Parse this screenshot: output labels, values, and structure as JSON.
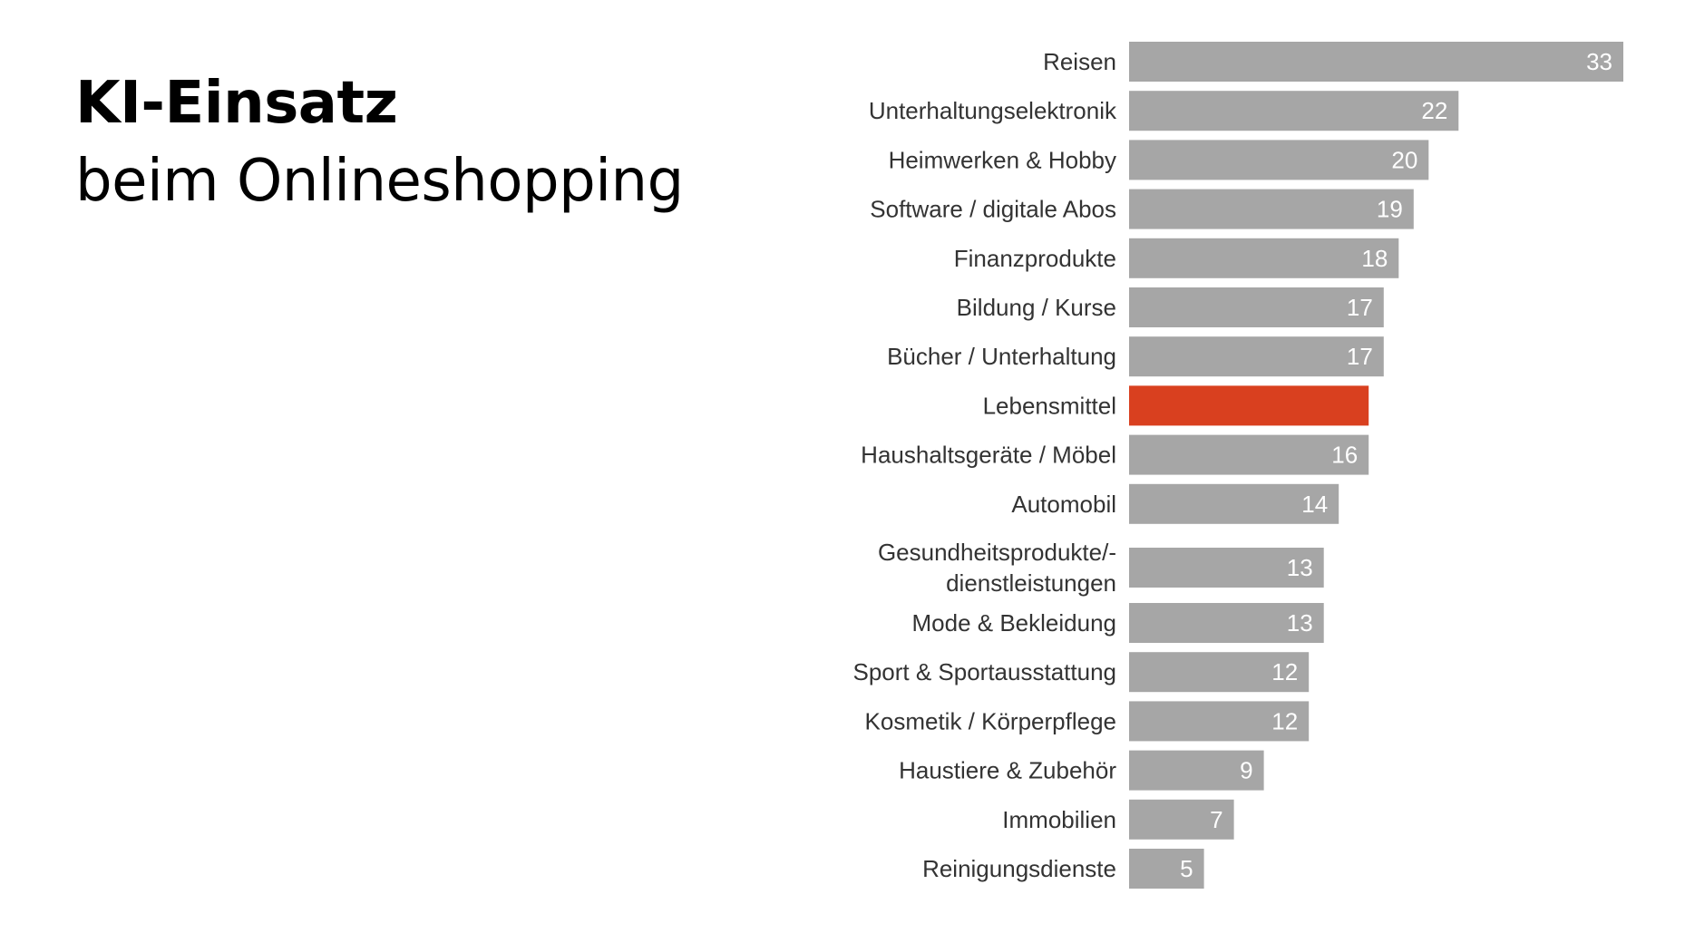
{
  "title": "KI-Einsatz",
  "subtitle": "beim Onlineshopping",
  "colors": {
    "bar": "#a6a6a6",
    "highlight": "#d9401f",
    "label": "#333333",
    "value": "#ffffff"
  },
  "chart_data": {
    "type": "bar",
    "orientation": "horizontal",
    "title": "KI-Einsatz",
    "subtitle": "beim Onlineshopping",
    "categories": [
      [
        "Reisen"
      ],
      [
        "Unterhaltungselektronik"
      ],
      [
        "Heimwerken & Hobby"
      ],
      [
        "Software / digitale Abos"
      ],
      [
        "Finanzprodukte"
      ],
      [
        "Bildung / Kurse"
      ],
      [
        "Bücher / Unterhaltung"
      ],
      [
        "Lebensmittel"
      ],
      [
        "Haushaltsgeräte / Möbel"
      ],
      [
        "Automobil"
      ],
      [
        "Gesundheitsprodukte/-",
        "dienstleistungen"
      ],
      [
        "Mode & Bekleidung"
      ],
      [
        "Sport & Sportausstattung"
      ],
      [
        "Kosmetik / Körperpflege"
      ],
      [
        "Haustiere & Zubehör"
      ],
      [
        "Immobilien"
      ],
      [
        "Reinigungsdienste"
      ]
    ],
    "values": [
      33,
      22,
      20,
      19,
      18,
      17,
      17,
      16,
      16,
      14,
      13,
      13,
      12,
      12,
      9,
      7,
      5
    ],
    "value_labels": [
      "33",
      "22",
      "20",
      "19",
      "18",
      "17",
      "17",
      "",
      "16",
      "14",
      "13",
      "13",
      "12",
      "12",
      "9",
      "7",
      "5"
    ],
    "highlight_index": 7,
    "xlim": [
      0,
      33
    ],
    "grid": false,
    "legend": false
  }
}
